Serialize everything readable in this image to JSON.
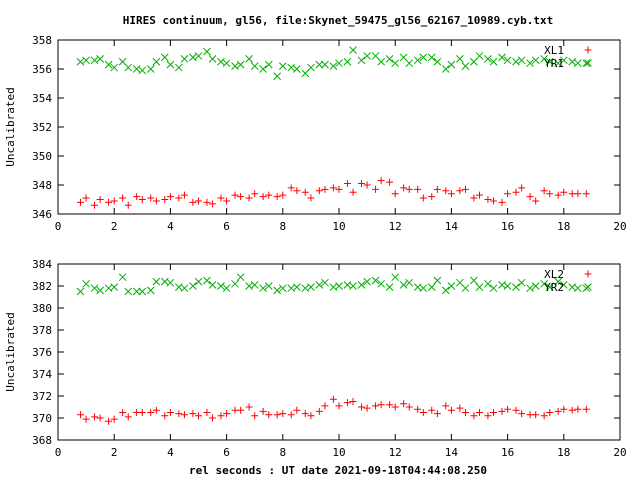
{
  "chart_data": {
    "title": "HIRES continuum, gl56, file:Skynet_59475_gl56_62167_10989.cyb.txt",
    "xlabel": "rel seconds : UT date 2021-09-18T04:44:08.250",
    "x_ticks": [
      0,
      2,
      4,
      6,
      8,
      10,
      12,
      14,
      16,
      18,
      20
    ],
    "colors": {
      "XL": "#ff0000",
      "YR": "#00b000",
      "axis": "#000000"
    },
    "panels": [
      {
        "type": "scatter",
        "ylabel": "Uncalibrated",
        "xlim": [
          0,
          20
        ],
        "ylim": [
          346,
          358
        ],
        "y_ticks": [
          346,
          348,
          350,
          352,
          354,
          356,
          358
        ],
        "legend": "top-right",
        "series": [
          {
            "name": "XL1",
            "marker": "plus",
            "x": [
              0.8,
              1.0,
              1.3,
              1.5,
              1.8,
              2.0,
              2.3,
              2.5,
              2.8,
              3.0,
              3.3,
              3.5,
              3.8,
              4.0,
              4.3,
              4.5,
              4.8,
              5.0,
              5.3,
              5.5,
              5.8,
              6.0,
              6.3,
              6.5,
              6.8,
              7.0,
              7.3,
              7.5,
              7.8,
              8.0,
              8.3,
              8.5,
              8.8,
              9.0,
              9.3,
              9.5,
              9.8,
              10.0,
              10.3,
              10.5,
              10.8,
              11.0,
              11.3,
              11.5,
              11.8,
              12.0,
              12.3,
              12.5,
              12.8,
              13.0,
              13.3,
              13.5,
              13.8,
              14.0,
              14.3,
              14.5,
              14.8,
              15.0,
              15.3,
              15.5,
              15.8,
              16.0,
              16.3,
              16.5,
              16.8,
              17.0,
              17.3,
              17.5,
              17.8,
              18.0,
              18.3,
              18.5,
              18.8
            ],
            "y": [
              346.8,
              347.1,
              346.6,
              347.0,
              346.8,
              346.9,
              347.1,
              346.6,
              347.2,
              347.0,
              347.1,
              346.9,
              347.0,
              347.2,
              347.1,
              347.3,
              346.8,
              346.9,
              346.8,
              346.7,
              347.1,
              346.9,
              347.3,
              347.2,
              347.1,
              347.4,
              347.2,
              347.3,
              347.2,
              347.3,
              347.8,
              347.6,
              347.5,
              347.1,
              347.6,
              347.7,
              347.8,
              347.7,
              348.1,
              347.5,
              348.1,
              348.0,
              347.7,
              348.3,
              348.2,
              347.4,
              347.8,
              347.7,
              347.7,
              347.1,
              347.2,
              347.7,
              347.6,
              347.4,
              347.6,
              347.7,
              347.1,
              347.3,
              347.0,
              346.9,
              346.8,
              347.4,
              347.5,
              347.8,
              347.2,
              346.9,
              347.6,
              347.4,
              347.3,
              347.5,
              347.4,
              347.4,
              347.4
            ],
            "y_note": "values"
          },
          {
            "name": "YR1",
            "marker": "cross",
            "x": [
              0.8,
              1.0,
              1.3,
              1.5,
              1.8,
              2.0,
              2.3,
              2.5,
              2.8,
              3.0,
              3.3,
              3.5,
              3.8,
              4.0,
              4.3,
              4.5,
              4.8,
              5.0,
              5.3,
              5.5,
              5.8,
              6.0,
              6.3,
              6.5,
              6.8,
              7.0,
              7.3,
              7.5,
              7.8,
              8.0,
              8.3,
              8.5,
              8.8,
              9.0,
              9.3,
              9.5,
              9.8,
              10.0,
              10.3,
              10.5,
              10.8,
              11.0,
              11.3,
              11.5,
              11.8,
              12.0,
              12.3,
              12.5,
              12.8,
              13.0,
              13.3,
              13.5,
              13.8,
              14.0,
              14.3,
              14.5,
              14.8,
              15.0,
              15.3,
              15.5,
              15.8,
              16.0,
              16.3,
              16.5,
              16.8,
              17.0,
              17.3,
              17.5,
              17.8,
              18.0,
              18.3,
              18.5,
              18.8
            ],
            "y": [
              356.5,
              356.6,
              356.6,
              356.7,
              356.3,
              356.1,
              356.5,
              356.1,
              356.0,
              355.9,
              356.0,
              356.5,
              356.8,
              356.3,
              356.1,
              356.7,
              356.8,
              356.9,
              357.2,
              356.7,
              356.5,
              356.4,
              356.2,
              356.3,
              356.7,
              356.2,
              356.0,
              356.3,
              355.5,
              356.2,
              356.1,
              356.0,
              355.7,
              356.1,
              356.3,
              356.3,
              356.2,
              356.4,
              356.5,
              357.3,
              356.6,
              356.9,
              356.9,
              356.5,
              356.7,
              356.4,
              356.8,
              356.4,
              356.6,
              356.8,
              356.8,
              356.5,
              356.0,
              356.3,
              356.7,
              356.2,
              356.5,
              356.9,
              356.7,
              356.5,
              356.8,
              356.6,
              356.5,
              356.6,
              356.4,
              356.6,
              356.7,
              356.5,
              356.4,
              356.6,
              356.5,
              356.4,
              356.4
            ]
          }
        ]
      },
      {
        "type": "scatter",
        "ylabel": "Uncalibrated",
        "xlim": [
          0,
          20
        ],
        "ylim": [
          368,
          384
        ],
        "y_ticks": [
          368,
          370,
          372,
          374,
          376,
          378,
          380,
          382,
          384
        ],
        "legend": "top-right",
        "series": [
          {
            "name": "XL2",
            "marker": "plus",
            "x": [
              0.8,
              1.0,
              1.3,
              1.5,
              1.8,
              2.0,
              2.3,
              2.5,
              2.8,
              3.0,
              3.3,
              3.5,
              3.8,
              4.0,
              4.3,
              4.5,
              4.8,
              5.0,
              5.3,
              5.5,
              5.8,
              6.0,
              6.3,
              6.5,
              6.8,
              7.0,
              7.3,
              7.5,
              7.8,
              8.0,
              8.3,
              8.5,
              8.8,
              9.0,
              9.3,
              9.5,
              9.8,
              10.0,
              10.3,
              10.5,
              10.8,
              11.0,
              11.3,
              11.5,
              11.8,
              12.0,
              12.3,
              12.5,
              12.8,
              13.0,
              13.3,
              13.5,
              13.8,
              14.0,
              14.3,
              14.5,
              14.8,
              15.0,
              15.3,
              15.5,
              15.8,
              16.0,
              16.3,
              16.5,
              16.8,
              17.0,
              17.3,
              17.5,
              17.8,
              18.0,
              18.3,
              18.5,
              18.8
            ],
            "y": [
              370.3,
              369.9,
              370.1,
              370.0,
              369.7,
              369.9,
              370.5,
              370.1,
              370.5,
              370.5,
              370.5,
              370.7,
              370.2,
              370.5,
              370.4,
              370.3,
              370.4,
              370.2,
              370.5,
              370.0,
              370.2,
              370.4,
              370.7,
              370.7,
              371.0,
              370.2,
              370.6,
              370.3,
              370.3,
              370.4,
              370.3,
              370.7,
              370.4,
              370.2,
              370.6,
              371.1,
              371.7,
              371.1,
              371.4,
              371.5,
              371.0,
              370.9,
              371.1,
              371.2,
              371.2,
              371.0,
              371.3,
              371.0,
              370.8,
              370.5,
              370.7,
              370.4,
              371.1,
              370.7,
              370.9,
              370.5,
              370.2,
              370.5,
              370.2,
              370.5,
              370.6,
              370.8,
              370.7,
              370.4,
              370.3,
              370.3,
              370.2,
              370.5,
              370.6,
              370.8,
              370.7,
              370.8,
              370.8
            ]
          },
          {
            "name": "YR2",
            "marker": "cross",
            "x": [
              0.8,
              1.0,
              1.3,
              1.5,
              1.8,
              2.0,
              2.3,
              2.5,
              2.8,
              3.0,
              3.3,
              3.5,
              3.8,
              4.0,
              4.3,
              4.5,
              4.8,
              5.0,
              5.3,
              5.5,
              5.8,
              6.0,
              6.3,
              6.5,
              6.8,
              7.0,
              7.3,
              7.5,
              7.8,
              8.0,
              8.3,
              8.5,
              8.8,
              9.0,
              9.3,
              9.5,
              9.8,
              10.0,
              10.3,
              10.5,
              10.8,
              11.0,
              11.3,
              11.5,
              11.8,
              12.0,
              12.3,
              12.5,
              12.8,
              13.0,
              13.3,
              13.5,
              13.8,
              14.0,
              14.3,
              14.5,
              14.8,
              15.0,
              15.3,
              15.5,
              15.8,
              16.0,
              16.3,
              16.5,
              16.8,
              17.0,
              17.3,
              17.5,
              17.8,
              18.0,
              18.3,
              18.5,
              18.8
            ],
            "y": [
              381.5,
              382.2,
              381.8,
              381.6,
              381.8,
              381.9,
              382.8,
              381.5,
              381.5,
              381.5,
              381.6,
              382.4,
              382.4,
              382.3,
              381.9,
              381.8,
              382.0,
              382.4,
              382.5,
              382.1,
              382.0,
              381.8,
              382.2,
              382.8,
              382.0,
              382.1,
              381.8,
              382.0,
              381.6,
              381.8,
              381.8,
              381.9,
              381.8,
              381.9,
              382.1,
              382.3,
              381.9,
              382.0,
              382.1,
              382.0,
              382.1,
              382.4,
              382.5,
              382.2,
              381.9,
              382.8,
              382.1,
              382.3,
              381.9,
              381.8,
              381.9,
              382.5,
              381.6,
              382.0,
              382.3,
              381.8,
              382.5,
              381.9,
              382.2,
              381.8,
              382.1,
              382.0,
              381.9,
              382.3,
              381.8,
              382.0,
              382.2,
              381.9,
              382.4,
              382.1,
              381.9,
              381.8,
              381.8
            ]
          }
        ]
      }
    ]
  }
}
